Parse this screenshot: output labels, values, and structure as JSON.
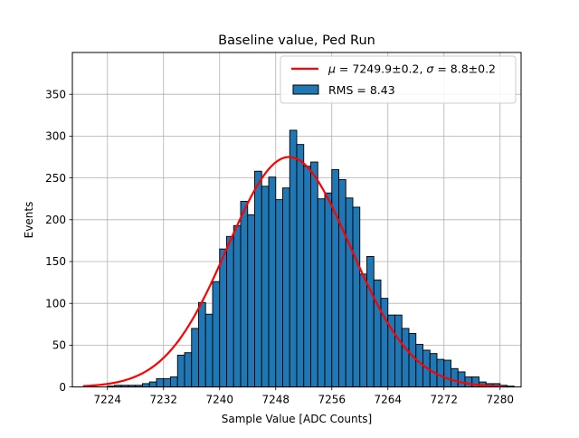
{
  "chart_data": {
    "type": "bar",
    "title": "Baseline value, Ped Run",
    "xlabel": "Sample Value [ADC Counts]",
    "ylabel": "Events",
    "xlim": [
      7219,
      7283
    ],
    "ylim": [
      0,
      400
    ],
    "xticks": [
      7224,
      7232,
      7240,
      7248,
      7256,
      7264,
      7272,
      7280
    ],
    "yticks": [
      0,
      50,
      100,
      150,
      200,
      250,
      300,
      350
    ],
    "grid": true,
    "legend_position": "top-right",
    "histogram": {
      "name": "RMS = 8.43",
      "color": "#1f77b4",
      "edge_color": "#000000",
      "bins_start": 7222,
      "bin_width": 1,
      "counts": [
        0,
        0,
        1,
        2,
        2,
        2,
        2,
        4,
        6,
        10,
        10,
        12,
        38,
        41,
        70,
        101,
        87,
        126,
        165,
        180,
        193,
        222,
        206,
        258,
        240,
        251,
        224,
        238,
        307,
        290,
        264,
        269,
        225,
        232,
        260,
        248,
        226,
        215,
        135,
        156,
        128,
        106,
        86,
        86,
        70,
        64,
        51,
        44,
        40,
        33,
        32,
        22,
        18,
        12,
        12,
        6,
        4,
        4,
        2,
        1,
        0
      ]
    },
    "fit": {
      "name": "$\\mu=$7249.9±0.2, $\\sigma=$8.8±0.2",
      "legend_label_parts": [
        "μ",
        " = 7249.9±0.2, ",
        "σ",
        " = 8.8±0.2"
      ],
      "color": "#ff0000",
      "mu": 7249.9,
      "sigma": 8.8,
      "amplitude": 275,
      "x_range": [
        7220.5,
        7280.5
      ]
    }
  }
}
